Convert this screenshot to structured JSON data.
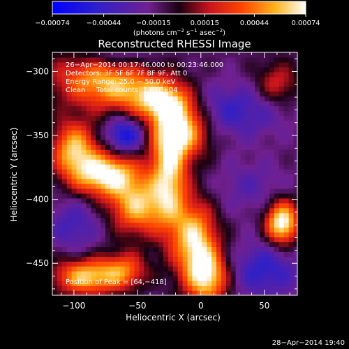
{
  "chart_data": {
    "type": "heatmap",
    "title": "Reconstructed RHESSI Image",
    "xlabel": "Heliocentric X (arcsec)",
    "ylabel": "Heliocentric Y (arcsec)",
    "xlim": [
      -117,
      76
    ],
    "ylim": [
      -475,
      -285
    ],
    "x_ticks": [
      -100,
      -50,
      0,
      50
    ],
    "x_tick_labels": [
      "−100",
      "−50",
      "0",
      "50"
    ],
    "y_ticks": [
      -300,
      -350,
      -400,
      -450
    ],
    "y_tick_labels": [
      "−300",
      "−350",
      "−400",
      "−450"
    ],
    "colorbar": {
      "range": [
        -0.00074,
        0.00074
      ],
      "ticks": [
        -0.00074,
        -0.00044,
        -0.00015,
        0.00015,
        0.00044,
        0.00074
      ],
      "tick_labels": [
        "−0.00074",
        "−0.00044",
        "−0.00015",
        "0.00015",
        "0.00044",
        "0.00074"
      ],
      "units_text": "(photons cm",
      "units_sup1": "−2",
      "units_mid": " s",
      "units_sup2": "−1",
      "units_mid2": " asec",
      "units_sup3": "−2",
      "units_end": ")"
    },
    "info_lines": [
      "26−Apr−2014 00:17:46.000 to 00:23:46.000",
      "Detectors: 3F 5F 6F 7F 8F 9F, Att 0",
      "Energy Range: 25.0 − 50.0 keV",
      "Clean     Total counts: 1.65E+04"
    ],
    "peak_label": "Position of Peak = [64,−418]",
    "peak": [
      64,
      -418
    ],
    "sources": [
      {
        "x": -85,
        "y": -305,
        "sx": 25,
        "sy": 15,
        "amp": 0.55
      },
      {
        "x": -50,
        "y": -315,
        "sx": 25,
        "sy": 12,
        "amp": 0.5
      },
      {
        "x": -60,
        "y": -350,
        "sx": 10,
        "sy": 10,
        "amp": -0.55
      },
      {
        "x": -100,
        "y": -360,
        "sx": 12,
        "sy": 15,
        "amp": 0.75
      },
      {
        "x": -75,
        "y": -380,
        "sx": 18,
        "sy": 12,
        "amp": 0.95
      },
      {
        "x": -50,
        "y": -405,
        "sx": 15,
        "sy": 15,
        "amp": 0.75
      },
      {
        "x": -25,
        "y": -380,
        "sx": 10,
        "sy": 30,
        "amp": 0.8
      },
      {
        "x": -15,
        "y": -345,
        "sx": 15,
        "sy": 15,
        "amp": 0.85
      },
      {
        "x": -30,
        "y": -325,
        "sx": 15,
        "sy": 10,
        "amp": 0.6
      },
      {
        "x": -5,
        "y": -430,
        "sx": 12,
        "sy": 20,
        "amp": 0.8
      },
      {
        "x": 5,
        "y": -460,
        "sx": 12,
        "sy": 15,
        "amp": 0.85
      },
      {
        "x": -90,
        "y": -460,
        "sx": 18,
        "sy": 10,
        "amp": 0.8
      },
      {
        "x": -60,
        "y": -455,
        "sx": 12,
        "sy": 10,
        "amp": 0.5
      },
      {
        "x": 64,
        "y": -418,
        "sx": 9,
        "sy": 12,
        "amp": 1.0
      },
      {
        "x": 25,
        "y": -330,
        "sx": 30,
        "sy": 15,
        "amp": -0.35
      },
      {
        "x": 50,
        "y": -455,
        "sx": 20,
        "sy": 15,
        "amp": -0.4
      },
      {
        "x": -100,
        "y": -420,
        "sx": 15,
        "sy": 15,
        "amp": -0.3
      },
      {
        "x": -70,
        "y": -285,
        "sx": 20,
        "sy": 8,
        "amp": -0.25
      },
      {
        "x": 40,
        "y": -390,
        "sx": 20,
        "sy": 15,
        "amp": -0.2
      },
      {
        "x": 60,
        "y": -310,
        "sx": 12,
        "sy": 12,
        "amp": 0.4
      }
    ],
    "grid": false,
    "legend": "none"
  },
  "timestamp": "28−Apr−2014 19:40"
}
